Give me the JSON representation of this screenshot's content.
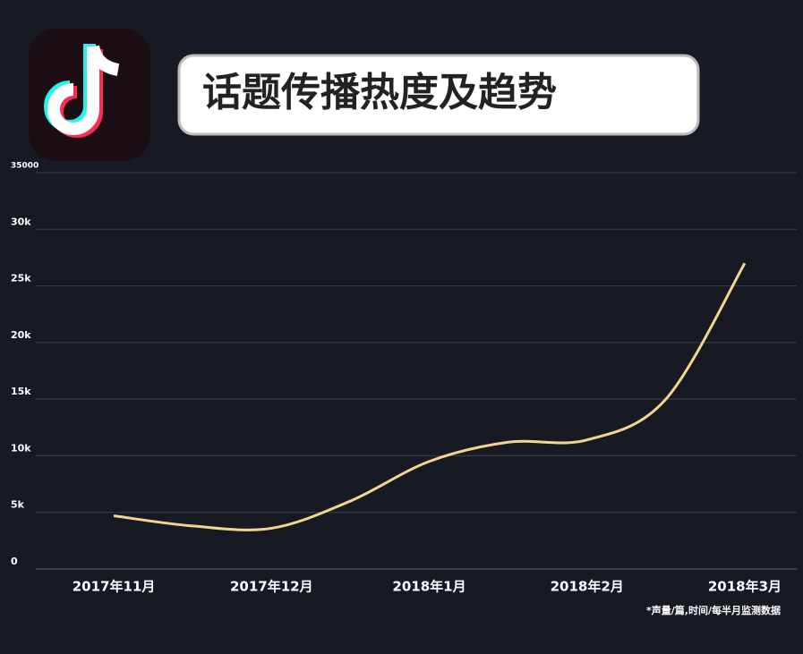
{
  "chart_data": {
    "type": "line",
    "title": "话题传播热度及趋势",
    "note": "*声量/篇,时间/每半月监测数据",
    "categories": [
      "2017年11月",
      null,
      "2017年12月",
      null,
      "2018年1月",
      null,
      "2018年2月",
      null,
      "2018年3月"
    ],
    "series": [
      {
        "name": null,
        "color": "#f5d58e",
        "values": [
          4700,
          3800,
          3600,
          6000,
          9500,
          11200,
          11400,
          15000,
          27000
        ]
      }
    ],
    "ylim": [
      0,
      35000
    ],
    "yticks": [
      0,
      {
        "value": 5000,
        "label": "5k"
      },
      {
        "value": 10000,
        "label": "10k"
      },
      {
        "value": 15000,
        "label": "15k"
      },
      {
        "value": 20000,
        "label": "20k"
      },
      {
        "value": 25000,
        "label": "25k"
      },
      {
        "value": 30000,
        "label": "30k"
      },
      35000
    ],
    "grid": true
  }
}
